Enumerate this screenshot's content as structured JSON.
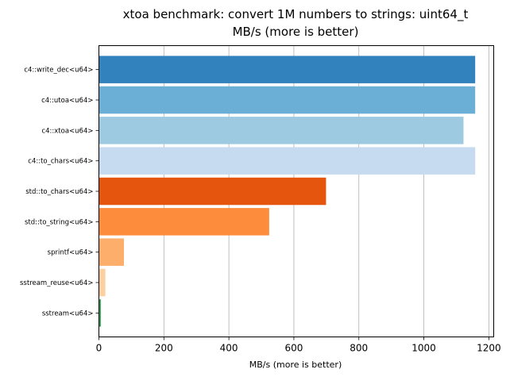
{
  "chart_data": {
    "type": "bar",
    "orientation": "horizontal",
    "title": "xtoa benchmark: convert 1M numbers to strings: uint64_t",
    "subtitle": "MB/s (more is better)",
    "xlabel": "MB/s (more is better)",
    "ylabel": "",
    "xlim": [
      0,
      1215
    ],
    "xticks": [
      0,
      200,
      400,
      600,
      800,
      1000,
      1200
    ],
    "grid": "vertical",
    "categories": [
      "c4::write_dec<u64>",
      "c4::utoa<u64>",
      "c4::xtoa<u64>",
      "c4::to_chars<u64>",
      "std::to_chars<u64>",
      "std::to_string<u64>",
      "sprintf<u64>",
      "sstream_reuse<u64>",
      "sstream<u64>"
    ],
    "values": [
      1158,
      1158,
      1122,
      1158,
      699,
      524,
      77,
      20,
      6
    ],
    "colors": [
      "#3182bd",
      "#6baed6",
      "#9ecae1",
      "#c6dbef",
      "#e6550d",
      "#fd8d3c",
      "#fdae6b",
      "#fdd0a2",
      "#31a354"
    ]
  }
}
